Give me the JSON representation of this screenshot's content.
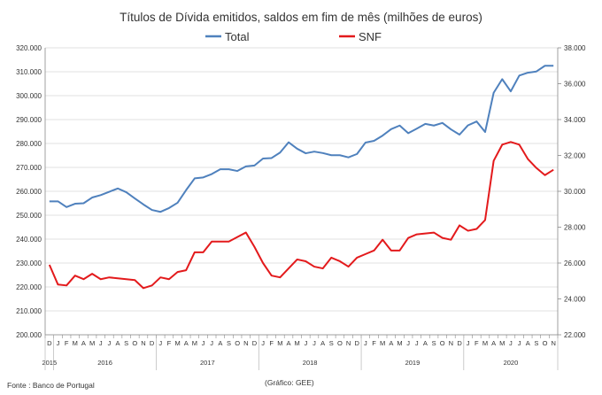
{
  "chart_data": {
    "type": "line",
    "title": "Títulos de Dívida emitidos, saldos em fim de mês  (milhões de euros)",
    "legend_placement": "top-center",
    "grid": true,
    "months": [
      "D",
      "J",
      "F",
      "M",
      "A",
      "M",
      "J",
      "J",
      "A",
      "S",
      "O",
      "N",
      "D",
      "J",
      "F",
      "M",
      "A",
      "M",
      "J",
      "J",
      "A",
      "S",
      "O",
      "N",
      "D",
      "J",
      "F",
      "M",
      "A",
      "M",
      "J",
      "J",
      "A",
      "S",
      "O",
      "N",
      "D",
      "J",
      "F",
      "M",
      "A",
      "M",
      "J",
      "J",
      "A",
      "S",
      "O",
      "N",
      "D",
      "J",
      "F",
      "M",
      "A",
      "M",
      "J",
      "J",
      "A",
      "S",
      "O",
      "N"
    ],
    "years": [
      {
        "label": "2015",
        "start": 0,
        "end": 0
      },
      {
        "label": "2016",
        "start": 1,
        "end": 12
      },
      {
        "label": "2017",
        "start": 13,
        "end": 24
      },
      {
        "label": "2018",
        "start": 25,
        "end": 36
      },
      {
        "label": "2019",
        "start": 37,
        "end": 48
      },
      {
        "label": "2020",
        "start": 49,
        "end": 59
      }
    ],
    "y_left": {
      "min": 200000,
      "max": 320000,
      "step": 10000,
      "ticks": [
        "200.000",
        "210.000",
        "220.000",
        "230.000",
        "240.000",
        "250.000",
        "260.000",
        "270.000",
        "280.000",
        "290.000",
        "300.000",
        "310.000",
        "320.000"
      ]
    },
    "y_right": {
      "min": 22000,
      "max": 38000,
      "step": 2000,
      "ticks": [
        "22.000",
        "24.000",
        "26.000",
        "28.000",
        "30.000",
        "32.000",
        "34.000",
        "36.000",
        "38.000"
      ]
    },
    "series": [
      {
        "name": "Total",
        "axis": "left",
        "color": "#4f81bd",
        "values": [
          255800,
          255800,
          253400,
          254800,
          255000,
          257400,
          258400,
          259800,
          261200,
          259600,
          257000,
          254500,
          252200,
          251400,
          253000,
          255200,
          260500,
          265400,
          265800,
          267200,
          269200,
          269200,
          268500,
          270400,
          270800,
          273700,
          273900,
          276200,
          280500,
          277800,
          275900,
          276600,
          276000,
          275100,
          275100,
          274200,
          275600,
          280400,
          281100,
          283300,
          286000,
          287500,
          284300,
          286200,
          288200,
          287500,
          288600,
          285900,
          283700,
          287600,
          289200,
          284800,
          301200,
          306900,
          301800,
          308400,
          309600,
          310100,
          312500,
          312500
        ]
      },
      {
        "name": "SNF",
        "axis": "right",
        "color": "#e31a1c",
        "values": [
          25900,
          24800,
          24750,
          25300,
          25100,
          25400,
          25100,
          25200,
          25150,
          25100,
          25050,
          24600,
          24750,
          25200,
          25100,
          25500,
          25600,
          26600,
          26600,
          27200,
          27200,
          27200,
          27450,
          27700,
          26900,
          26000,
          25300,
          25200,
          25700,
          26200,
          26100,
          25800,
          25700,
          26300,
          26100,
          25800,
          26300,
          26500,
          26700,
          27300,
          26700,
          26700,
          27400,
          27600,
          27650,
          27700,
          27400,
          27300,
          28100,
          27800,
          27900,
          28400,
          31700,
          32600,
          32750,
          32600,
          31800,
          31300,
          30900,
          31200
        ]
      }
    ],
    "source": "Fonte : Banco de Portugal",
    "credit": "(Gráfico: GEE)"
  }
}
